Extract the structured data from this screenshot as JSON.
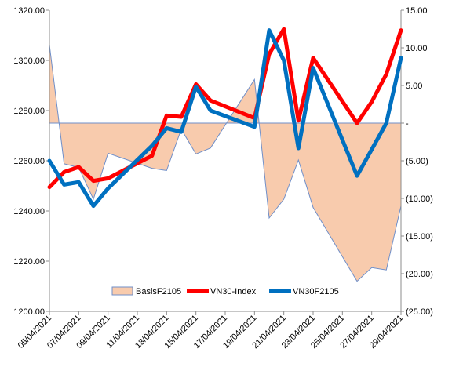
{
  "chart_data": {
    "type": "line",
    "x": [
      "05/04/2021",
      "06/04/2021",
      "07/04/2021",
      "08/04/2021",
      "09/04/2021",
      "12/04/2021",
      "13/04/2021",
      "14/04/2021",
      "15/04/2021",
      "16/04/2021",
      "19/04/2021",
      "20/04/2021",
      "21/04/2021",
      "22/04/2021",
      "23/04/2021",
      "26/04/2021",
      "27/04/2021",
      "28/04/2021",
      "29/04/2021"
    ],
    "x_tick_labels": [
      "05/04/2021",
      "07/04/2021",
      "09/04/2021",
      "11/04/2021",
      "13/04/2021",
      "15/04/2021",
      "17/04/2021",
      "19/04/2021",
      "21/04/2021",
      "23/04/2021",
      "25/04/2021",
      "27/04/2021",
      "29/04/2021"
    ],
    "x_range": [
      "05/04/2021",
      "29/04/2021"
    ],
    "series": [
      {
        "name": "BasisF2105",
        "type": "area",
        "axis": "right",
        "color": "#f8cbad",
        "line_color": "#6f8fc9",
        "values": [
          10.4,
          -5.4,
          -5.9,
          -10.1,
          -4.0,
          -6.0,
          -6.3,
          -0.8,
          -4.1,
          -3.3,
          5.8,
          -12.6,
          -10.1,
          -4.9,
          -11.2,
          -21.0,
          -19.2,
          -19.5,
          -11.0
        ]
      },
      {
        "name": "VN30-Index",
        "type": "line",
        "axis": "left",
        "color": "#ff0000",
        "values": [
          1249.5,
          1255.5,
          1257.5,
          1252.0,
          1253.0,
          1262.0,
          1278.0,
          1277.5,
          1290.5,
          1284.0,
          1277.0,
          1302.5,
          1312.5,
          1276.0,
          1301.0,
          1275.0,
          1283.5,
          1294.5,
          1312.0
        ]
      },
      {
        "name": "VN30F2105",
        "type": "line",
        "axis": "left",
        "color": "#0070c0",
        "values": [
          1260.0,
          1250.5,
          1251.5,
          1242.0,
          1249.0,
          1266.0,
          1273.0,
          1271.5,
          1289.5,
          1280.0,
          1273.5,
          1312.0,
          1300.0,
          1265.0,
          1297.0,
          1254.0,
          1264.5,
          1275.0,
          1301.0
        ]
      }
    ],
    "left_axis": {
      "min": 1200,
      "max": 1320,
      "step": 20,
      "tick_labels": [
        "1200.00",
        "1220.00",
        "1240.00",
        "1260.00",
        "1280.00",
        "1300.00",
        "1320.00"
      ]
    },
    "right_axis": {
      "min": -25,
      "max": 15,
      "step": 5,
      "tick_labels": [
        "(25.00)",
        "(20.00)",
        "(15.00)",
        "(10.00)",
        "(5.00)",
        "-",
        "5.00",
        "10.00",
        "15.00"
      ]
    },
    "legend": {
      "placement": "bottom-center",
      "entries": [
        "BasisF2105",
        "VN30-Index",
        "VN30F2105"
      ]
    },
    "grid": false,
    "title": "",
    "xlabel": "",
    "ylabel": ""
  }
}
